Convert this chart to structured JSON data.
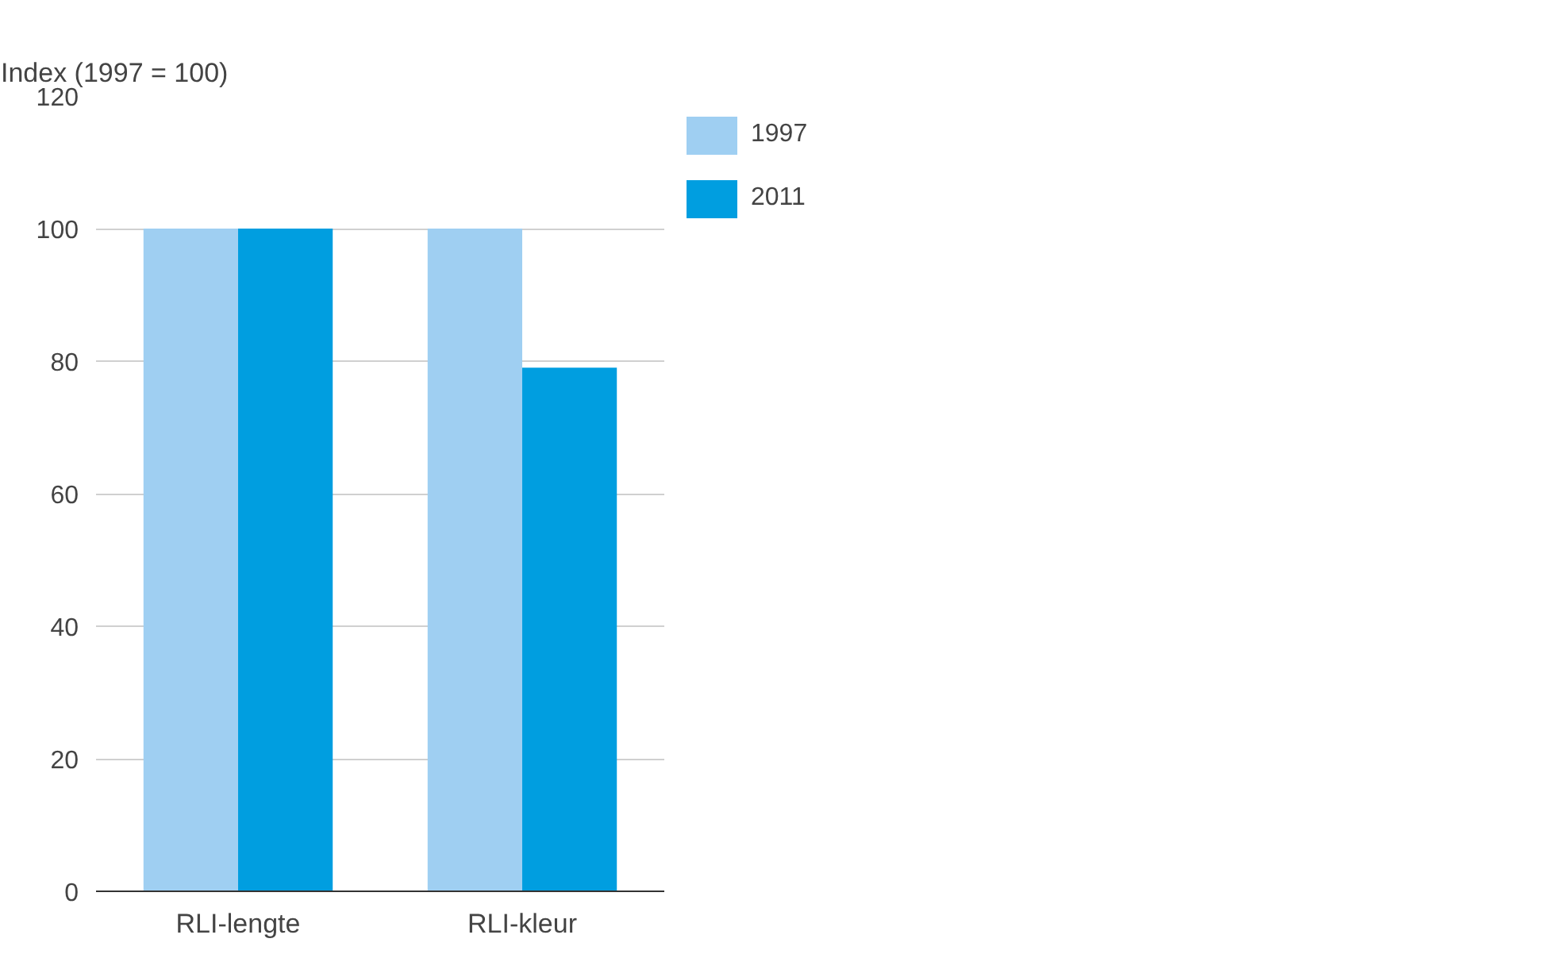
{
  "chart_data": {
    "type": "bar",
    "ylabel": "Index (1997 = 100)",
    "categories": [
      "RLI-lengte",
      "RLI-kleur"
    ],
    "series": [
      {
        "name": "1997",
        "color": "#9fcff2",
        "values": [
          100,
          100
        ]
      },
      {
        "name": "2011",
        "color": "#009ee0",
        "values": [
          100,
          79
        ]
      }
    ],
    "ylim": [
      0,
      120
    ],
    "yticks": [
      0,
      20,
      40,
      60,
      80,
      100,
      120
    ],
    "grid": "y",
    "legend": "top right"
  }
}
